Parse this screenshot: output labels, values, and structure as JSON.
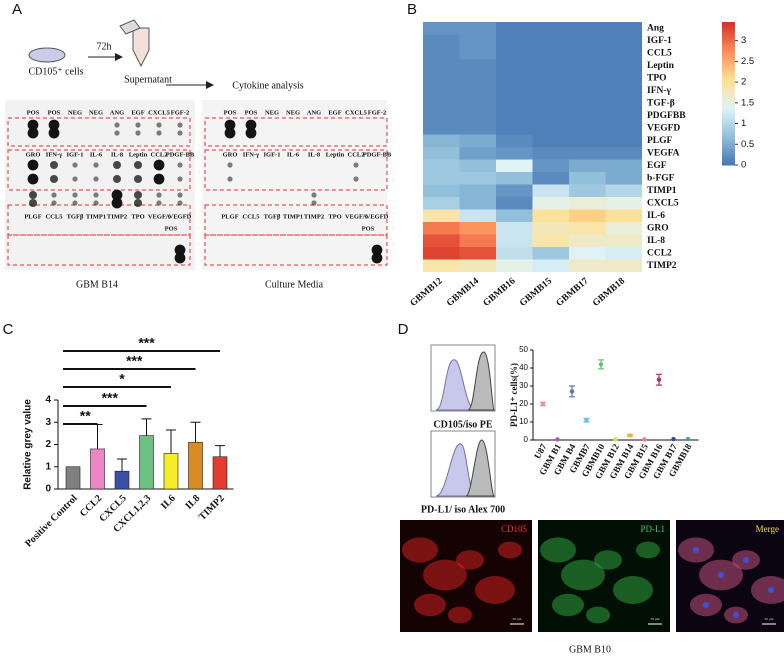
{
  "panel_labels": [
    "A",
    "B",
    "C",
    "D"
  ],
  "panel_a": {
    "time": "72h",
    "cells": "CD105⁺ cells",
    "supernatant": "Supernatant",
    "analysis": "Cytokine analysis",
    "blot_rows": [
      [
        "POS",
        "POS",
        "NEG",
        "NEG",
        "ANG",
        "EGF",
        "CXCL5",
        "FGF-2"
      ],
      [
        "GRO",
        "IFN-γ",
        "IGF-1",
        "IL-6",
        "IL-8",
        "Leptin",
        "CCL2",
        "PDGF-BB"
      ],
      [
        "PLGF",
        "CCL5",
        "TGFβ",
        "TIMP1",
        "TIMP2",
        "TPO",
        "VEGFA",
        "VEGFD"
      ]
    ],
    "pos_label": "POS",
    "captions": [
      "GBM B14",
      "Culture Media"
    ]
  },
  "chart_data": [
    {
      "type": "heatmap",
      "rows": [
        "Ang",
        "IGF-1",
        "CCL5",
        "Leptin",
        "TPO",
        "IFN-γ",
        "TGF-β",
        "PDGFBB",
        "VEGFD",
        "PLGF",
        "VEGFA",
        "EGF",
        "b-FGF",
        "TIMP1",
        "CXCL5",
        "IL-6",
        "GRO",
        "IL-8",
        "CCL2",
        "TIMP2"
      ],
      "columns": [
        "GBMB12",
        "GBMB14",
        "GBMB16",
        "GBMB15",
        "GBMB17",
        "GBMB18"
      ],
      "values": [
        [
          0.3,
          0.3,
          0.1,
          0.1,
          0.1,
          0.1
        ],
        [
          0.2,
          0.3,
          0.1,
          0.1,
          0.1,
          0.1
        ],
        [
          0.2,
          0.3,
          0.1,
          0.1,
          0.1,
          0.1
        ],
        [
          0.2,
          0.2,
          0.1,
          0.1,
          0.1,
          0.1
        ],
        [
          0.2,
          0.2,
          0.1,
          0.1,
          0.1,
          0.1
        ],
        [
          0.2,
          0.2,
          0.1,
          0.1,
          0.1,
          0.1
        ],
        [
          0.2,
          0.2,
          0.1,
          0.1,
          0.1,
          0.1
        ],
        [
          0.2,
          0.2,
          0.1,
          0.1,
          0.1,
          0.1
        ],
        [
          0.2,
          0.2,
          0.1,
          0.1,
          0.1,
          0.1
        ],
        [
          0.6,
          0.5,
          0.2,
          0.1,
          0.1,
          0.1
        ],
        [
          0.7,
          0.4,
          0.3,
          0.2,
          0.2,
          0.2
        ],
        [
          0.8,
          0.7,
          1.4,
          0.3,
          0.5,
          0.5
        ],
        [
          0.8,
          0.8,
          0.7,
          0.2,
          0.7,
          0.5
        ],
        [
          0.7,
          0.6,
          0.3,
          1.2,
          0.8,
          1.0
        ],
        [
          0.9,
          0.6,
          0.2,
          1.5,
          1.6,
          1.5
        ],
        [
          1.9,
          1.2,
          0.7,
          2.0,
          2.2,
          2.0
        ],
        [
          2.9,
          2.7,
          1.2,
          1.8,
          1.9,
          1.6
        ],
        [
          3.2,
          2.9,
          1.2,
          1.9,
          1.7,
          1.7
        ],
        [
          3.3,
          3.2,
          1.1,
          0.8,
          1.4,
          1.3
        ],
        [
          1.9,
          1.8,
          1.5,
          1.3,
          1.7,
          1.7
        ]
      ],
      "clim": [
        0,
        3.45
      ],
      "cticks": [
        0,
        0.5,
        1,
        1.5,
        2,
        2.5,
        3
      ],
      "colors": [
        "#4575b4",
        "#91bfdb",
        "#e0f3f8",
        "#fee090",
        "#fc8d59",
        "#d73027"
      ]
    },
    {
      "type": "bar",
      "ylabel": "Relative grey value",
      "categories": [
        "Positive Control",
        "CCL2",
        "CXCL5",
        "CXCL1,2,3",
        "IL6",
        "IL8",
        "TIMP2"
      ],
      "values": [
        1.0,
        1.8,
        0.8,
        2.4,
        1.6,
        2.1,
        1.45
      ],
      "errors": [
        0,
        1.1,
        0.55,
        0.75,
        1.05,
        0.9,
        0.5
      ],
      "colors": [
        "#808080",
        "#ec86c6",
        "#3a4fa8",
        "#6cc283",
        "#f6ec2a",
        "#d88c24",
        "#e23b2f"
      ],
      "significance": [
        null,
        "**",
        null,
        "***",
        "*",
        "***",
        "***"
      ],
      "ylim": [
        0,
        4
      ],
      "yticks": [
        0,
        1,
        2,
        3,
        4
      ]
    },
    {
      "type": "dot",
      "ylabel": "PD-L1⁺ cells(%)",
      "categories": [
        "U87",
        "GBM B1",
        "GBM B4",
        "GBMB7",
        "GBMB10",
        "GBM B12",
        "GBM B14",
        "GBM B15",
        "GBM B16",
        "GBM B17",
        "GBMB18"
      ],
      "values": [
        20,
        0.3,
        27,
        11,
        42,
        0.3,
        2.5,
        0.3,
        33.5,
        0.5,
        0.5
      ],
      "errors": [
        1,
        0,
        3,
        1,
        2.5,
        0,
        0.5,
        0,
        3,
        0,
        0
      ],
      "colors": [
        "#e890a8",
        "#9a5fb5",
        "#5a70b8",
        "#6ac0e0",
        "#6cc070",
        "#d8e040",
        "#f0b040",
        "#f08080",
        "#b03060",
        "#3050a0",
        "#40a0a0"
      ],
      "ylim": [
        0,
        50
      ],
      "yticks": [
        0,
        10,
        20,
        30,
        40,
        50
      ]
    }
  ],
  "panel_d": {
    "flow_labels": [
      "CD105/iso PE",
      "PD-L1/ iso Alex 700"
    ],
    "image_labels": [
      "CD105",
      "PD-L1",
      "Merge"
    ],
    "scale_bar": "50 μm",
    "caption": "GBM B10"
  }
}
